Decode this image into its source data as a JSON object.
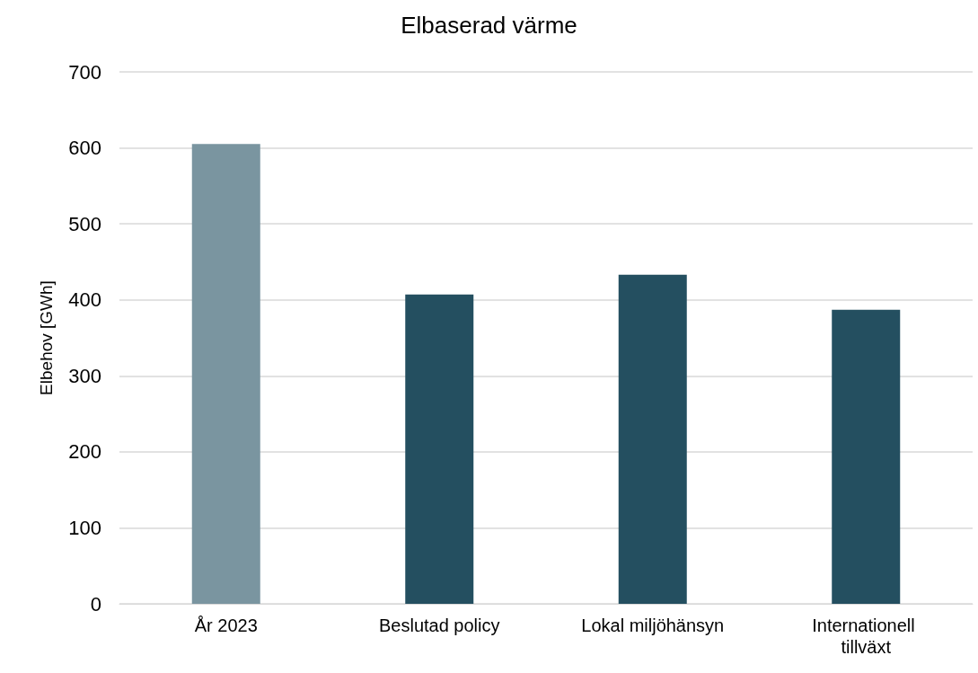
{
  "chart_data": {
    "type": "bar",
    "title": "Elbaserad värme",
    "ylabel": "Elbehov [GWh]",
    "categories": [
      "År 2023",
      "Beslutad policy",
      "Lokal miljöhänsyn",
      "Internationell tillväxt"
    ],
    "values": [
      605,
      407,
      433,
      387
    ],
    "colors": [
      "#7a95a0",
      "#244f60",
      "#244f60",
      "#244f60"
    ],
    "ylim": [
      0,
      700
    ],
    "yticks": [
      0,
      100,
      200,
      300,
      400,
      500,
      600,
      700
    ],
    "grid": "y"
  }
}
